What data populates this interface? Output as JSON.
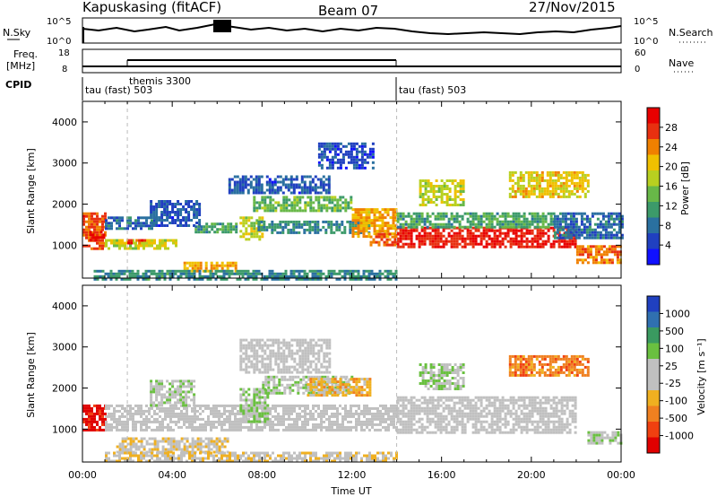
{
  "header": {
    "title": "Kapuskasing (fitACF)",
    "beam": "Beam 07",
    "date": "27/Nov/2015"
  },
  "noise_panel": {
    "left_label": "N.Sky",
    "left_ticks": [
      "10^5",
      "10^0"
    ],
    "right_label": "N.Search",
    "right_ticks": [
      "10^5",
      "10^0"
    ]
  },
  "freq_panel": {
    "left_label_line1": "Freq.",
    "left_label_line2": "[MHz]",
    "left_ticks": [
      "18",
      "8"
    ],
    "right_label": "Nave",
    "right_ticks": [
      "60",
      "0"
    ]
  },
  "cpid_panel": {
    "label": "CPID",
    "segments": [
      {
        "text": "tau (fast) 503",
        "start_h": 0,
        "end_h": 14
      },
      {
        "text": "themis 3300",
        "start_h": 2,
        "end_h": 14
      },
      {
        "text": "tau (fast) 503",
        "start_h": 14,
        "end_h": 24
      }
    ]
  },
  "colors": {
    "power_scale": [
      "#1010ff",
      "#2040c0",
      "#2a70a0",
      "#3c9a6a",
      "#68b848",
      "#b8d020",
      "#f0c000",
      "#f08000",
      "#e83010",
      "#e80000"
    ],
    "velocity_scale": [
      "#2040c0",
      "#3070b0",
      "#3a9a60",
      "#6ac040",
      "#c0c0c0",
      "#c0c0c0",
      "#f0b020",
      "#f08020",
      "#f04010",
      "#e00000"
    ]
  },
  "chart_data": [
    {
      "type": "heatmap",
      "panel": "power",
      "xlabel": "",
      "ylabel": "Slant Range [km]",
      "xlim": [
        0,
        24
      ],
      "ylim": [
        200,
        4500
      ],
      "yticks": [
        1000,
        2000,
        3000,
        4000
      ],
      "colorbar": {
        "label": "Power [dB]",
        "range": [
          0,
          32
        ],
        "ticks": [
          "4",
          "8",
          "12",
          "16",
          "20",
          "24",
          "28"
        ]
      },
      "regions": [
        {
          "x0": 0.0,
          "x1": 1.0,
          "y0": 900,
          "y1": 1800,
          "v": 26
        },
        {
          "x0": 0.3,
          "x1": 1.0,
          "y0": 1150,
          "y1": 1350,
          "v": 30
        },
        {
          "x0": 1.0,
          "x1": 3.2,
          "y0": 1400,
          "y1": 1700,
          "v": 8
        },
        {
          "x0": 1.0,
          "x1": 4.2,
          "y0": 950,
          "y1": 1150,
          "v": 18
        },
        {
          "x0": 2.0,
          "x1": 2.8,
          "y0": 1050,
          "y1": 1150,
          "v": 27
        },
        {
          "x0": 3.0,
          "x1": 5.2,
          "y0": 1500,
          "y1": 2100,
          "v": 6
        },
        {
          "x0": 5.0,
          "x1": 6.8,
          "y0": 1300,
          "y1": 1550,
          "v": 12
        },
        {
          "x0": 7.0,
          "x1": 8.0,
          "y0": 1150,
          "y1": 1700,
          "v": 18
        },
        {
          "x0": 7.6,
          "x1": 12.0,
          "y0": 1850,
          "y1": 2200,
          "v": 14
        },
        {
          "x0": 7.8,
          "x1": 12.8,
          "y0": 1300,
          "y1": 1600,
          "v": 10
        },
        {
          "x0": 6.5,
          "x1": 11.0,
          "y0": 2300,
          "y1": 2700,
          "v": 6
        },
        {
          "x0": 10.5,
          "x1": 13.0,
          "y0": 2900,
          "y1": 3500,
          "v": 5
        },
        {
          "x0": 12.0,
          "x1": 14.0,
          "y0": 1200,
          "y1": 1900,
          "v": 22
        },
        {
          "x0": 12.8,
          "x1": 14.0,
          "y0": 1000,
          "y1": 1300,
          "v": 26
        },
        {
          "x0": 4.5,
          "x1": 6.8,
          "y0": 400,
          "y1": 600,
          "v": 22
        },
        {
          "x0": 0.5,
          "x1": 14.0,
          "y0": 200,
          "y1": 400,
          "v": 10
        },
        {
          "x0": 14.0,
          "x1": 22.0,
          "y0": 950,
          "y1": 1450,
          "v": 29
        },
        {
          "x0": 14.0,
          "x1": 21.0,
          "y0": 1450,
          "y1": 1800,
          "v": 12
        },
        {
          "x0": 15.0,
          "x1": 17.0,
          "y0": 2000,
          "y1": 2600,
          "v": 18
        },
        {
          "x0": 19.0,
          "x1": 22.5,
          "y0": 2200,
          "y1": 2800,
          "v": 20
        },
        {
          "x0": 21.0,
          "x1": 24.0,
          "y0": 1200,
          "y1": 1800,
          "v": 8
        },
        {
          "x0": 22.0,
          "x1": 24.0,
          "y0": 600,
          "y1": 1000,
          "v": 24
        }
      ]
    },
    {
      "type": "heatmap",
      "panel": "velocity",
      "xlabel": "Time UT",
      "ylabel": "Slant Range [km]",
      "xlim": [
        0,
        24
      ],
      "ylim": [
        200,
        4500
      ],
      "yticks": [
        1000,
        2000,
        3000,
        4000
      ],
      "xticks": [
        "00:00",
        "04:00",
        "08:00",
        "12:00",
        "16:00",
        "20:00",
        "00:00"
      ],
      "colorbar": {
        "label": "Velocity [m s⁻¹]",
        "range": [
          -1000,
          1000
        ],
        "ticks": [
          "1000",
          "500",
          "100",
          "25",
          "-25",
          "-100",
          "-500",
          "-1000"
        ]
      },
      "regions": [
        {
          "x0": 0.0,
          "x1": 1.0,
          "y0": 1000,
          "y1": 1600,
          "v": -900
        },
        {
          "x0": 1.0,
          "x1": 14.0,
          "y0": 1000,
          "y1": 1600,
          "v": 0
        },
        {
          "x0": 3.0,
          "x1": 5.0,
          "y0": 1600,
          "y1": 2200,
          "v": 120
        },
        {
          "x0": 7.0,
          "x1": 8.2,
          "y0": 1200,
          "y1": 2000,
          "v": 200
        },
        {
          "x0": 8.0,
          "x1": 12.0,
          "y0": 1900,
          "y1": 2300,
          "v": 150
        },
        {
          "x0": 7.0,
          "x1": 11.0,
          "y0": 2400,
          "y1": 3200,
          "v": 0
        },
        {
          "x0": 10.0,
          "x1": 12.8,
          "y0": 1850,
          "y1": 2250,
          "v": -300
        },
        {
          "x0": 1.5,
          "x1": 6.5,
          "y0": 450,
          "y1": 800,
          "v": -120
        },
        {
          "x0": 1.0,
          "x1": 14.0,
          "y0": 200,
          "y1": 450,
          "v": -150
        },
        {
          "x0": 14.0,
          "x1": 22.0,
          "y0": 900,
          "y1": 1800,
          "v": 0
        },
        {
          "x0": 15.0,
          "x1": 17.0,
          "y0": 2000,
          "y1": 2600,
          "v": 150
        },
        {
          "x0": 19.0,
          "x1": 22.5,
          "y0": 2300,
          "y1": 2800,
          "v": -500
        },
        {
          "x0": 22.5,
          "x1": 24.0,
          "y0": 650,
          "y1": 950,
          "v": 150
        }
      ]
    }
  ]
}
